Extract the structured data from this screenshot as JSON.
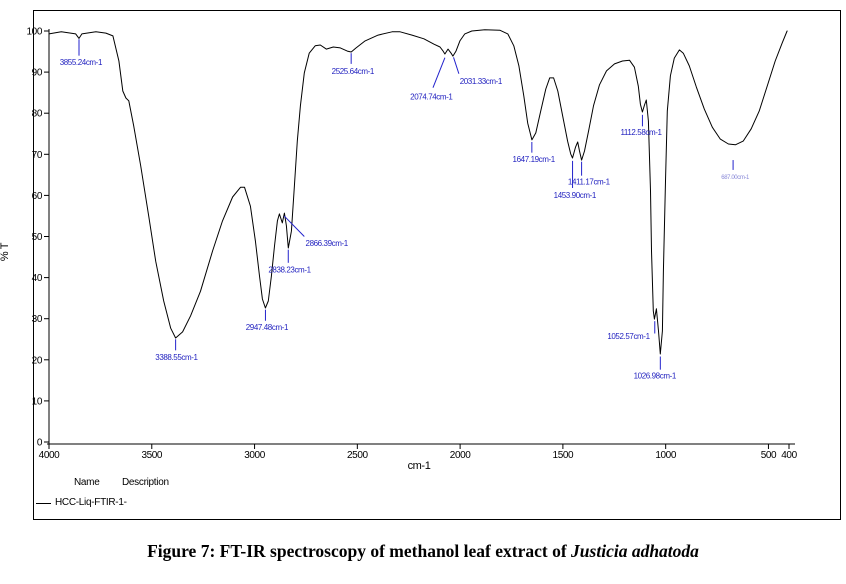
{
  "chart_data": {
    "type": "line",
    "title": "",
    "xlabel": "cm-1",
    "ylabel": "% T",
    "x_axis": {
      "min": 400,
      "max": 4000,
      "direction": "reversed",
      "ticks": [
        4000,
        3500,
        3000,
        2500,
        2000,
        1500,
        1000,
        500,
        400
      ]
    },
    "y_axis": {
      "min": 0,
      "max": 100,
      "ticks": [
        0,
        10,
        20,
        30,
        40,
        50,
        60,
        70,
        80,
        90,
        100
      ]
    },
    "grid": false,
    "legend_position": "bottom-left",
    "series": [
      {
        "name": "HCC-Liq-FTIR-1-",
        "color": "#000000",
        "points": [
          [
            4000,
            99.3
          ],
          [
            3940,
            99.8
          ],
          [
            3870,
            99.3
          ],
          [
            3854,
            98.2
          ],
          [
            3840,
            99.3
          ],
          [
            3772,
            99.8
          ],
          [
            3723,
            99.5
          ],
          [
            3689,
            98.8
          ],
          [
            3660,
            92.7
          ],
          [
            3641,
            85.4
          ],
          [
            3626,
            83.7
          ],
          [
            3612,
            83.0
          ],
          [
            3588,
            76.9
          ],
          [
            3554,
            67.2
          ],
          [
            3515,
            55.0
          ],
          [
            3481,
            44.0
          ],
          [
            3442,
            34.3
          ],
          [
            3408,
            27.7
          ],
          [
            3384,
            25.3
          ],
          [
            3350,
            26.8
          ],
          [
            3311,
            30.7
          ],
          [
            3263,
            36.7
          ],
          [
            3204,
            46.5
          ],
          [
            3156,
            53.8
          ],
          [
            3107,
            59.6
          ],
          [
            3068,
            62.0
          ],
          [
            3049,
            62.0
          ],
          [
            3020,
            57.4
          ],
          [
            2996,
            48.9
          ],
          [
            2976,
            40.4
          ],
          [
            2962,
            34.8
          ],
          [
            2947,
            32.6
          ],
          [
            2933,
            34.3
          ],
          [
            2918,
            40.4
          ],
          [
            2903,
            47.7
          ],
          [
            2889,
            53.8
          ],
          [
            2879,
            55.5
          ],
          [
            2865,
            53.3
          ],
          [
            2855,
            55.7
          ],
          [
            2845,
            52.6
          ],
          [
            2836,
            47.2
          ],
          [
            2821,
            51.3
          ],
          [
            2806,
            62.3
          ],
          [
            2792,
            73.2
          ],
          [
            2777,
            81.8
          ],
          [
            2758,
            89.8
          ],
          [
            2734,
            94.6
          ],
          [
            2705,
            96.4
          ],
          [
            2680,
            96.6
          ],
          [
            2651,
            95.6
          ],
          [
            2617,
            96.1
          ],
          [
            2583,
            95.9
          ],
          [
            2549,
            95.1
          ],
          [
            2530,
            94.9
          ],
          [
            2506,
            95.9
          ],
          [
            2462,
            97.6
          ],
          [
            2399,
            99.0
          ],
          [
            2331,
            99.8
          ],
          [
            2292,
            99.8
          ],
          [
            2234,
            99.0
          ],
          [
            2176,
            98.1
          ],
          [
            2127,
            96.8
          ],
          [
            2098,
            96.1
          ],
          [
            2083,
            95.1
          ],
          [
            2074,
            94.4
          ],
          [
            2059,
            95.6
          ],
          [
            2044,
            94.6
          ],
          [
            2035,
            93.9
          ],
          [
            2020,
            95.1
          ],
          [
            2001,
            97.6
          ],
          [
            1977,
            99.3
          ],
          [
            1943,
            100.0
          ],
          [
            1880,
            100.3
          ],
          [
            1807,
            100.2
          ],
          [
            1768,
            99.3
          ],
          [
            1739,
            96.4
          ],
          [
            1714,
            91.5
          ],
          [
            1690,
            84.2
          ],
          [
            1671,
            77.6
          ],
          [
            1651,
            73.5
          ],
          [
            1632,
            75.2
          ],
          [
            1608,
            80.5
          ],
          [
            1583,
            85.9
          ],
          [
            1564,
            88.6
          ],
          [
            1545,
            88.6
          ],
          [
            1525,
            85.4
          ],
          [
            1501,
            79.3
          ],
          [
            1477,
            73.2
          ],
          [
            1462,
            70.1
          ],
          [
            1453,
            69.1
          ],
          [
            1438,
            71.8
          ],
          [
            1428,
            73.0
          ],
          [
            1419,
            70.8
          ],
          [
            1409,
            68.6
          ],
          [
            1395,
            70.8
          ],
          [
            1375,
            75.7
          ],
          [
            1351,
            81.8
          ],
          [
            1322,
            86.9
          ],
          [
            1288,
            90.3
          ],
          [
            1249,
            92.0
          ],
          [
            1210,
            92.7
          ],
          [
            1176,
            92.9
          ],
          [
            1152,
            91.2
          ],
          [
            1133,
            86.6
          ],
          [
            1123,
            82.2
          ],
          [
            1113,
            80.3
          ],
          [
            1103,
            82.0
          ],
          [
            1094,
            83.2
          ],
          [
            1084,
            78.1
          ],
          [
            1074,
            61.1
          ],
          [
            1069,
            46.5
          ],
          [
            1060,
            31.9
          ],
          [
            1055,
            29.9
          ],
          [
            1045,
            32.4
          ],
          [
            1035,
            27.0
          ],
          [
            1026,
            21.4
          ],
          [
            1016,
            27.0
          ],
          [
            1011,
            41.6
          ],
          [
            1001,
            63.5
          ],
          [
            992,
            80.5
          ],
          [
            977,
            89.1
          ],
          [
            958,
            93.4
          ],
          [
            933,
            95.4
          ],
          [
            914,
            94.6
          ],
          [
            885,
            91.5
          ],
          [
            851,
            86.4
          ],
          [
            812,
            81.0
          ],
          [
            773,
            76.6
          ],
          [
            734,
            73.7
          ],
          [
            695,
            72.5
          ],
          [
            661,
            72.3
          ],
          [
            623,
            73.2
          ],
          [
            584,
            76.2
          ],
          [
            545,
            80.5
          ],
          [
            506,
            86.6
          ],
          [
            467,
            92.7
          ],
          [
            433,
            97.1
          ],
          [
            409,
            100.0
          ]
        ]
      }
    ],
    "annotation_color": "#2222cc",
    "annotations": [
      {
        "text": "3855.24cm-1",
        "line": [
          [
            3854,
            98.0
          ],
          [
            3854,
            94.0
          ]
        ],
        "label": [
          3845,
          92.3
        ],
        "anchor": "middle"
      },
      {
        "text": "3388.55cm-1",
        "line": [
          [
            3384,
            25.0
          ],
          [
            3384,
            22.3
          ]
        ],
        "label": [
          3380,
          20.5
        ],
        "anchor": "middle"
      },
      {
        "text": "2947.48cm-1",
        "line": [
          [
            2947,
            32.2
          ],
          [
            2947,
            29.5
          ]
        ],
        "label": [
          2940,
          27.8
        ],
        "anchor": "middle"
      },
      {
        "text": "2866.39cm-1",
        "line": [
          [
            2856,
            55.0
          ],
          [
            2758,
            50.0
          ]
        ],
        "label": [
          2752,
          48.3
        ],
        "anchor": "start"
      },
      {
        "text": "2838.23cm-1",
        "line": [
          [
            2836,
            46.8
          ],
          [
            2836,
            43.6
          ]
        ],
        "label": [
          2830,
          41.8
        ],
        "anchor": "middle"
      },
      {
        "text": "2525.64cm-1",
        "line": [
          [
            2530,
            94.6
          ],
          [
            2530,
            92.0
          ]
        ],
        "label": [
          2522,
          90.2
        ],
        "anchor": "middle"
      },
      {
        "text": "2074.74cm-1",
        "line": [
          [
            2074,
            93.5
          ],
          [
            2132,
            86.2
          ]
        ],
        "label": [
          2140,
          84.0
        ],
        "anchor": "middle"
      },
      {
        "text": "2031.33cm-1",
        "line": [
          [
            2032,
            93.6
          ],
          [
            2006,
            89.6
          ]
        ],
        "label": [
          2002,
          87.7
        ],
        "anchor": "start"
      },
      {
        "text": "1647.19cm-1",
        "line": [
          [
            1651,
            73.0
          ],
          [
            1651,
            70.4
          ]
        ],
        "label": [
          1642,
          68.7
        ],
        "anchor": "middle"
      },
      {
        "text": "1453.90cm-1",
        "line": [
          [
            1453,
            68.4
          ],
          [
            1453,
            61.8
          ]
        ],
        "label": [
          1442,
          60.0
        ],
        "anchor": "middle"
      },
      {
        "text": "1411.17cm-1",
        "line": [
          [
            1409,
            68.2
          ],
          [
            1409,
            64.8
          ]
        ],
        "label": [
          1374,
          63.2
        ],
        "anchor": "middle"
      },
      {
        "text": "1112.58cm-1",
        "line": [
          [
            1113,
            79.6
          ],
          [
            1113,
            76.8
          ]
        ],
        "label": [
          1120,
          75.3
        ],
        "anchor": "middle"
      },
      {
        "text": "1052.57cm-1",
        "line": [
          [
            1053,
            29.4
          ],
          [
            1053,
            26.4
          ]
        ],
        "label": [
          1078,
          25.7
        ],
        "anchor": "end"
      },
      {
        "text": "1026.98cm-1",
        "line": [
          [
            1026,
            20.8
          ],
          [
            1026,
            17.6
          ]
        ],
        "label": [
          1053,
          16.0
        ],
        "anchor": "middle"
      },
      {
        "text": "687.00cm-1",
        "line": [
          [
            672,
            68.6
          ],
          [
            672,
            66.2
          ]
        ],
        "label": [
          662,
          64.6
        ],
        "anchor": "middle",
        "small": true
      }
    ]
  },
  "legend": {
    "name_header": "Name",
    "description_header": "Description",
    "series_name": "HCC-Liq-FTIR-1-"
  },
  "caption": {
    "prefix": "Figure 7: FT-IR spectroscopy of methanol leaf extract of ",
    "species": "Justicia adhatoda"
  }
}
